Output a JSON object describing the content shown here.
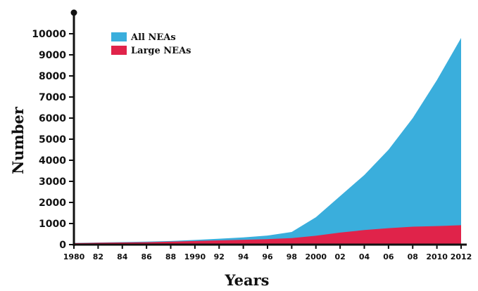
{
  "chart_data": {
    "type": "area",
    "x": [
      1980,
      1982,
      1984,
      1986,
      1988,
      1990,
      1992,
      1994,
      1996,
      1998,
      2000,
      2002,
      2004,
      2006,
      2008,
      2010,
      2012
    ],
    "x_tick_labels": [
      "1980",
      "82",
      "84",
      "86",
      "88",
      "1990",
      "92",
      "94",
      "96",
      "98",
      "2000",
      "02",
      "04",
      "06",
      "08",
      "2010",
      "2012"
    ],
    "series": [
      {
        "name": "All NEAs",
        "color": "#3aaedc",
        "values": [
          80,
          100,
          120,
          140,
          170,
          220,
          280,
          340,
          430,
          600,
          1300,
          2300,
          3300,
          4500,
          6000,
          7800,
          9800
        ]
      },
      {
        "name": "Large NEAs",
        "color": "#e0234a",
        "values": [
          70,
          85,
          100,
          115,
          140,
          170,
          200,
          230,
          260,
          310,
          420,
          570,
          690,
          780,
          850,
          880,
          920
        ]
      }
    ],
    "xlabel": "Years",
    "ylabel": "Number",
    "ylim": [
      0,
      10000
    ],
    "y_ticks": [
      0,
      1000,
      2000,
      3000,
      4000,
      5000,
      6000,
      7000,
      8000,
      9000,
      10000
    ],
    "xlim": [
      1980,
      2012
    ],
    "grid": false,
    "legend_position": "top-left"
  }
}
